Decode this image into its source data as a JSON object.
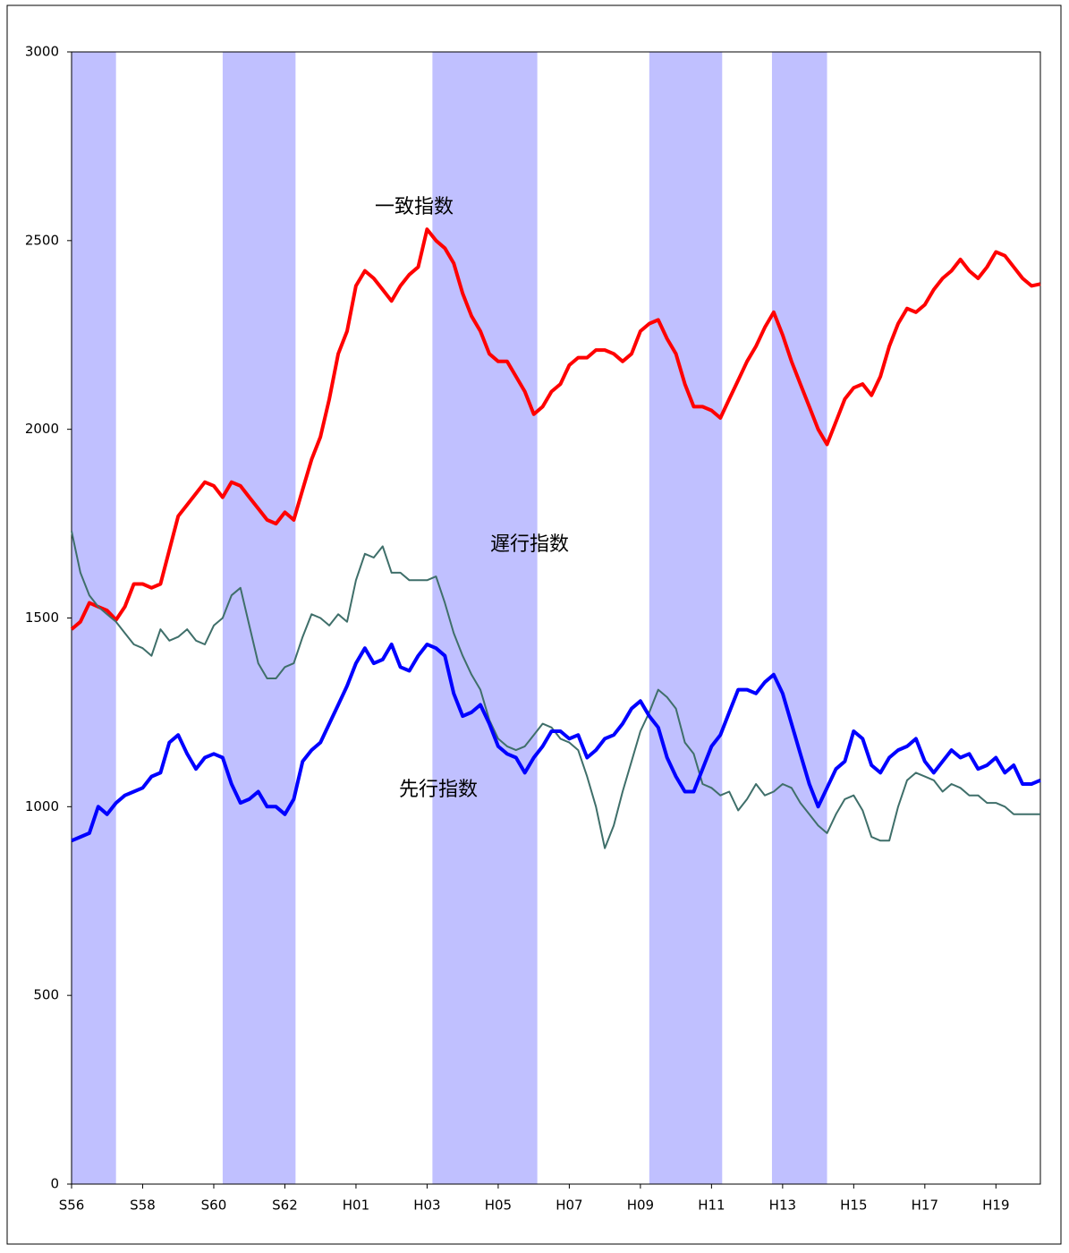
{
  "chart_data": {
    "type": "line",
    "x": [
      1981,
      1981.25,
      1981.5,
      1981.75,
      1982,
      1982.25,
      1982.5,
      1982.75,
      1983,
      1983.25,
      1983.5,
      1983.75,
      1984,
      1984.25,
      1984.5,
      1984.75,
      1985,
      1985.25,
      1985.5,
      1985.75,
      1986,
      1986.25,
      1986.5,
      1986.75,
      1987,
      1987.25,
      1987.5,
      1987.75,
      1988,
      1988.25,
      1988.5,
      1988.75,
      1989,
      1989.25,
      1989.5,
      1989.75,
      1990,
      1990.25,
      1990.5,
      1990.75,
      1991,
      1991.25,
      1991.5,
      1991.75,
      1992,
      1992.25,
      1992.5,
      1992.75,
      1993,
      1993.25,
      1993.5,
      1993.75,
      1994,
      1994.25,
      1994.5,
      1994.75,
      1995,
      1995.25,
      1995.5,
      1995.75,
      1996,
      1996.25,
      1996.5,
      1996.75,
      1997,
      1997.25,
      1997.5,
      1997.75,
      1998,
      1998.25,
      1998.5,
      1998.75,
      1999,
      1999.25,
      1999.5,
      1999.75,
      2000,
      2000.25,
      2000.5,
      2000.75,
      2001,
      2001.25,
      2001.5,
      2001.75,
      2002,
      2002.25,
      2002.5,
      2002.75,
      2003,
      2003.25,
      2003.5,
      2003.75,
      2004,
      2004.25,
      2004.5,
      2004.75,
      2005,
      2005.25,
      2005.5,
      2005.75,
      2006,
      2006.25,
      2006.5,
      2006.75,
      2007,
      2007.25,
      2007.5,
      2007.75,
      2008,
      2008.25
    ],
    "series": [
      {
        "name": "一致指数",
        "color": "#ff0000",
        "values": [
          1470,
          1490,
          1540,
          1530,
          1520,
          1495,
          1530,
          1590,
          1590,
          1580,
          1590,
          1680,
          1770,
          1800,
          1830,
          1860,
          1850,
          1820,
          1860,
          1850,
          1820,
          1790,
          1760,
          1750,
          1780,
          1760,
          1840,
          1920,
          1980,
          2080,
          2200,
          2260,
          2380,
          2420,
          2400,
          2370,
          2340,
          2380,
          2410,
          2430,
          2530,
          2500,
          2480,
          2440,
          2360,
          2300,
          2260,
          2200,
          2180,
          2180,
          2140,
          2100,
          2040,
          2060,
          2100,
          2120,
          2170,
          2190,
          2190,
          2210,
          2210,
          2200,
          2180,
          2200,
          2260,
          2280,
          2290,
          2240,
          2200,
          2120,
          2060,
          2060,
          2050,
          2030,
          2080,
          2130,
          2180,
          2220,
          2270,
          2310,
          2250,
          2180,
          2120,
          2060,
          2000,
          1960,
          2020,
          2080,
          2110,
          2120,
          2090,
          2140,
          2220,
          2280,
          2320,
          2310,
          2330,
          2370,
          2400,
          2420,
          2450,
          2420,
          2400,
          2430,
          2470,
          2460,
          2430,
          2400,
          2380,
          2385
        ]
      },
      {
        "name": "遅行指数",
        "color": "#3f6f6a",
        "values": [
          1730,
          1620,
          1560,
          1530,
          1510,
          1490,
          1460,
          1430,
          1420,
          1400,
          1470,
          1440,
          1450,
          1470,
          1440,
          1430,
          1480,
          1500,
          1560,
          1580,
          1480,
          1380,
          1340,
          1340,
          1370,
          1380,
          1450,
          1510,
          1500,
          1480,
          1510,
          1490,
          1600,
          1670,
          1660,
          1690,
          1620,
          1620,
          1600,
          1600,
          1600,
          1610,
          1540,
          1460,
          1400,
          1350,
          1310,
          1230,
          1180,
          1160,
          1150,
          1160,
          1190,
          1220,
          1210,
          1180,
          1170,
          1150,
          1080,
          1000,
          890,
          950,
          1040,
          1120,
          1200,
          1250,
          1310,
          1290,
          1260,
          1170,
          1140,
          1060,
          1050,
          1030,
          1040,
          990,
          1020,
          1060,
          1030,
          1040,
          1060,
          1050,
          1010,
          980,
          950,
          930,
          980,
          1020,
          1030,
          990,
          920,
          910,
          910,
          1000,
          1070,
          1090,
          1080,
          1070,
          1040,
          1060,
          1050,
          1030,
          1030,
          1010,
          1010,
          1000,
          980,
          980,
          980,
          980
        ]
      },
      {
        "name": "先行指数",
        "color": "#0000ff",
        "values": [
          910,
          920,
          930,
          1000,
          980,
          1010,
          1030,
          1040,
          1050,
          1080,
          1090,
          1170,
          1190,
          1140,
          1100,
          1130,
          1140,
          1130,
          1060,
          1010,
          1020,
          1040,
          1000,
          1000,
          980,
          1020,
          1120,
          1150,
          1170,
          1220,
          1270,
          1320,
          1380,
          1420,
          1380,
          1390,
          1430,
          1370,
          1360,
          1400,
          1430,
          1420,
          1400,
          1300,
          1240,
          1250,
          1270,
          1220,
          1160,
          1140,
          1130,
          1090,
          1130,
          1160,
          1200,
          1200,
          1180,
          1190,
          1130,
          1150,
          1180,
          1190,
          1220,
          1260,
          1280,
          1240,
          1210,
          1130,
          1080,
          1040,
          1040,
          1100,
          1160,
          1190,
          1250,
          1310,
          1310,
          1300,
          1330,
          1350,
          1300,
          1220,
          1140,
          1060,
          1000,
          1050,
          1100,
          1120,
          1200,
          1180,
          1110,
          1090,
          1130,
          1150,
          1160,
          1180,
          1120,
          1090,
          1120,
          1150,
          1130,
          1140,
          1100,
          1110,
          1130,
          1090,
          1110,
          1060,
          1060,
          1070
        ]
      }
    ],
    "shaded_periods": [
      [
        1981,
        1982.25
      ],
      [
        1985.25,
        1987.3
      ],
      [
        1991.15,
        1994.1
      ],
      [
        1997.25,
        1999.3
      ],
      [
        2000.7,
        2002.25
      ]
    ],
    "shade_color": "#c0c0ff",
    "xlim": [
      1981,
      2008.25
    ],
    "xticks": [
      {
        "value": 1981,
        "label": "S56"
      },
      {
        "value": 1983,
        "label": "S58"
      },
      {
        "value": 1985,
        "label": "S60"
      },
      {
        "value": 1987,
        "label": "S62"
      },
      {
        "value": 1989,
        "label": "H01"
      },
      {
        "value": 1991,
        "label": "H03"
      },
      {
        "value": 1993,
        "label": "H05"
      },
      {
        "value": 1995,
        "label": "H07"
      },
      {
        "value": 1997,
        "label": "H09"
      },
      {
        "value": 1999,
        "label": "H11"
      },
      {
        "value": 2001,
        "label": "H13"
      },
      {
        "value": 2003,
        "label": "H15"
      },
      {
        "value": 2005,
        "label": "H17"
      },
      {
        "value": 2007,
        "label": "H19"
      }
    ],
    "ylim": [
      0,
      3000
    ],
    "yticks": [
      0,
      500,
      1000,
      1500,
      2000,
      2500,
      3000
    ],
    "grid": false
  }
}
